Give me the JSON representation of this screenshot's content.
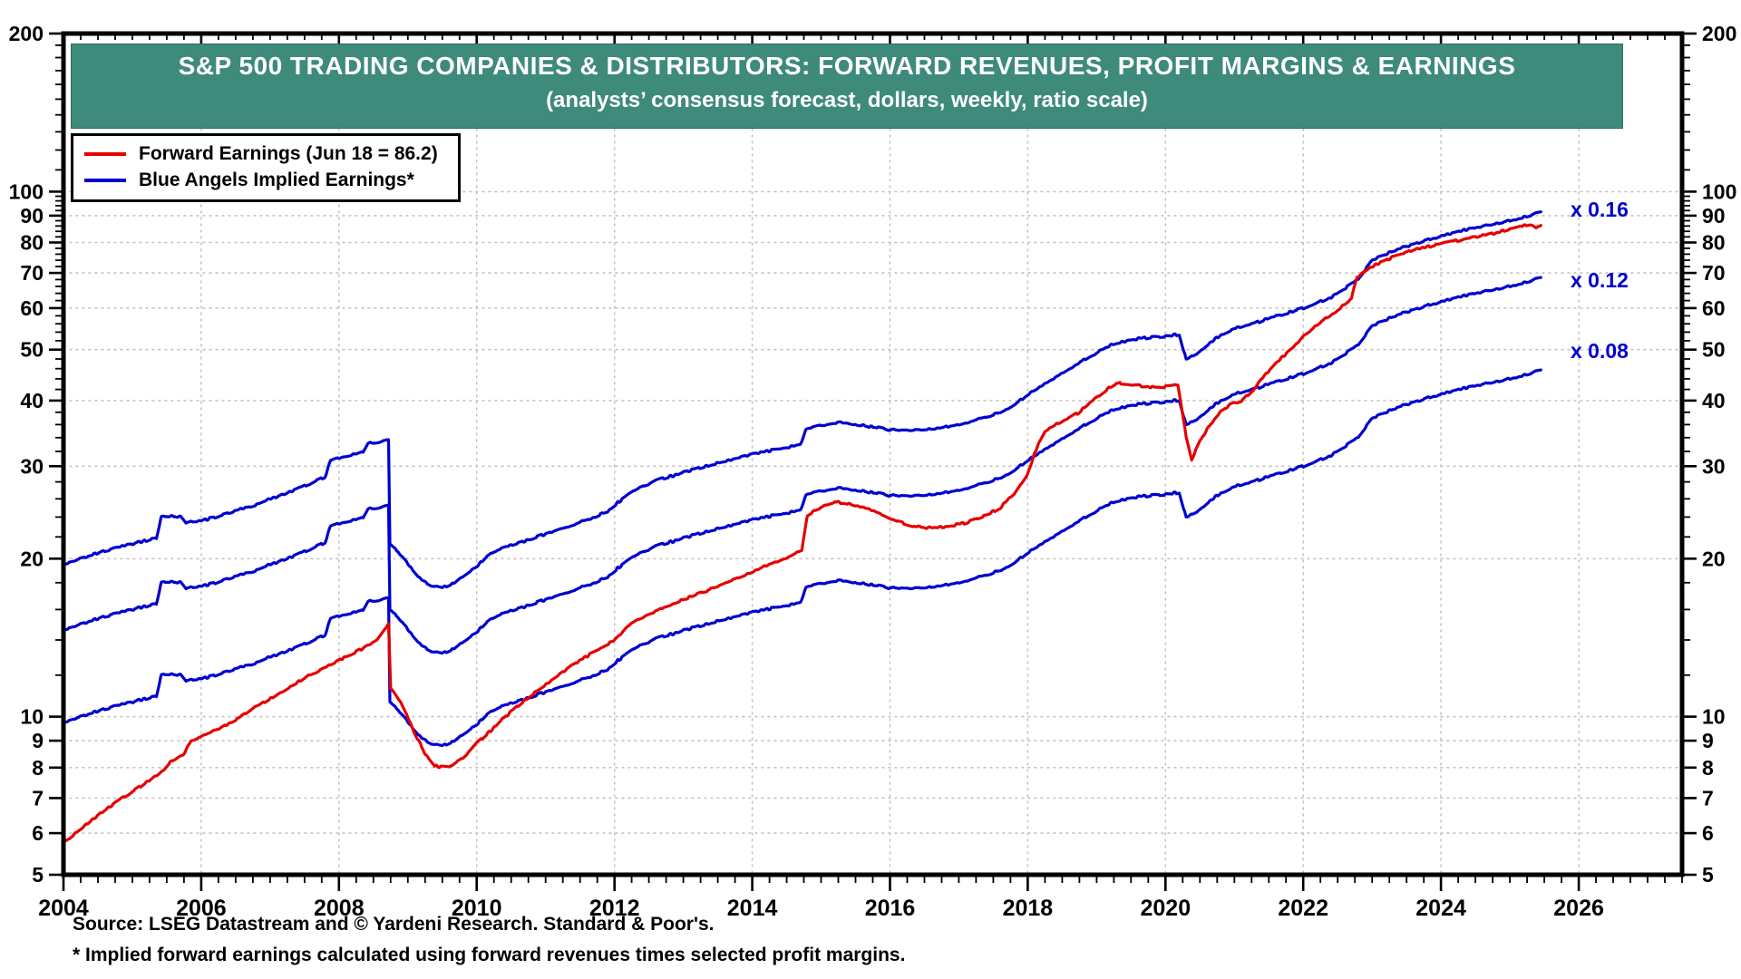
{
  "colors": {
    "forward_earnings": "#e60000",
    "blue_angels": "#0000d0",
    "title_bar_bg": "#3e8a7b",
    "grid": "#c3c3c3"
  },
  "legend": {
    "items": [
      {
        "label": "Forward Earnings (Jun 18 = 86.2)",
        "color": "#e60000"
      },
      {
        "label": "Blue Angels Implied Earnings*",
        "color": "#0000d0"
      }
    ]
  },
  "footer": {
    "source": "Source: LSEG Datastream and © Yardeni Research. Standard & Poor's.",
    "footnote": "* Implied forward earnings calculated using forward revenues times selected profit margins."
  },
  "chart_data": {
    "type": "line",
    "title": "S&P 500 TRADING COMPANIES & DISTRIBUTORS: FORWARD REVENUES, PROFIT MARGINS & EARNINGS",
    "subtitle": "(analysts’ consensus forecast, dollars, weekly, ratio scale)",
    "x_axis": {
      "start": 2004,
      "end": 2027.5,
      "tick_labels": [
        "2004",
        "2006",
        "2008",
        "2010",
        "2012",
        "2014",
        "2016",
        "2018",
        "2020",
        "2022",
        "2024",
        "2026"
      ],
      "tick_years": [
        2004,
        2006,
        2008,
        2010,
        2012,
        2014,
        2016,
        2018,
        2020,
        2022,
        2024,
        2026
      ],
      "minor_tick_interval_years": 0.25,
      "grid_years": [
        2006,
        2008,
        2010,
        2012,
        2014,
        2016,
        2018,
        2020,
        2022,
        2024,
        2026
      ]
    },
    "y_axis": {
      "scale": "log",
      "top": 200,
      "bottom": 5,
      "tick_values": [
        200,
        100,
        90,
        80,
        70,
        60,
        50,
        40,
        30,
        20,
        10,
        9,
        8,
        7,
        6,
        5
      ],
      "tick_labels": [
        "200",
        "100",
        "90",
        "80",
        "70",
        "60",
        "50",
        "40",
        "30",
        "20",
        "10",
        "9",
        "8",
        "7",
        "6",
        "5"
      ],
      "grid_values": [
        100,
        90,
        80,
        70,
        60,
        50,
        40,
        30,
        20,
        10,
        9,
        8,
        7,
        6
      ],
      "minor_tick_values": [
        6,
        7,
        8,
        9,
        12,
        14,
        16,
        18,
        22,
        24,
        26,
        28,
        32,
        34,
        36,
        38,
        42,
        44,
        46,
        48,
        52,
        54,
        56,
        58,
        62,
        64,
        66,
        68,
        72,
        74,
        76,
        78,
        82,
        84,
        86,
        88,
        92,
        94,
        96,
        98,
        110,
        120,
        130,
        140,
        150,
        160,
        170,
        180,
        190
      ]
    },
    "annotations": [
      {
        "text": "x 0.16",
        "y_value": 88
      },
      {
        "text": "x 0.12",
        "y_value": 66
      },
      {
        "text": "x 0.08",
        "y_value": 48
      }
    ],
    "series": [
      {
        "name": "Blue Angels Implied Earnings x 0.16",
        "color": "#0000d0",
        "note": "forward revenues times 0.16 profit margin; crash discontinuity late 2008",
        "ratio_to_base": 1.0,
        "points": [
          [
            2004.0,
            19.5
          ],
          [
            2004.3,
            20.1
          ],
          [
            2004.6,
            20.7
          ],
          [
            2004.9,
            21.2
          ],
          [
            2005.1,
            21.5
          ],
          [
            2005.35,
            21.9
          ],
          [
            2005.42,
            24.0
          ],
          [
            2005.7,
            24.1
          ],
          [
            2005.78,
            23.4
          ],
          [
            2006.0,
            23.6
          ],
          [
            2006.3,
            24.2
          ],
          [
            2006.6,
            24.9
          ],
          [
            2006.8,
            25.3
          ],
          [
            2007.0,
            26.0
          ],
          [
            2007.25,
            26.7
          ],
          [
            2007.5,
            27.5
          ],
          [
            2007.8,
            28.6
          ],
          [
            2007.88,
            30.8
          ],
          [
            2008.1,
            31.3
          ],
          [
            2008.35,
            32.0
          ],
          [
            2008.42,
            33.2
          ],
          [
            2008.6,
            33.3
          ],
          [
            2008.72,
            33.6
          ],
          [
            2008.74,
            21.3
          ],
          [
            2008.9,
            20.3
          ],
          [
            2009.05,
            19.2
          ],
          [
            2009.2,
            18.2
          ],
          [
            2009.35,
            17.7
          ],
          [
            2009.5,
            17.6
          ],
          [
            2009.65,
            17.9
          ],
          [
            2009.85,
            18.7
          ],
          [
            2010.0,
            19.3
          ],
          [
            2010.15,
            20.2
          ],
          [
            2010.3,
            20.8
          ],
          [
            2010.5,
            21.2
          ],
          [
            2010.7,
            21.6
          ],
          [
            2011.0,
            22.3
          ],
          [
            2011.3,
            23.0
          ],
          [
            2011.6,
            23.7
          ],
          [
            2011.9,
            24.6
          ],
          [
            2012.05,
            25.6
          ],
          [
            2012.3,
            27.0
          ],
          [
            2012.6,
            28.2
          ],
          [
            2012.9,
            28.9
          ],
          [
            2013.2,
            29.7
          ],
          [
            2013.5,
            30.4
          ],
          [
            2013.8,
            31.1
          ],
          [
            2014.1,
            31.8
          ],
          [
            2014.4,
            32.4
          ],
          [
            2014.7,
            33.0
          ],
          [
            2014.78,
            35.3
          ],
          [
            2015.0,
            35.9
          ],
          [
            2015.25,
            36.4
          ],
          [
            2015.5,
            36.0
          ],
          [
            2015.75,
            35.6
          ],
          [
            2016.0,
            35.2
          ],
          [
            2016.3,
            35.0
          ],
          [
            2016.6,
            35.3
          ],
          [
            2016.9,
            35.8
          ],
          [
            2017.1,
            36.3
          ],
          [
            2017.4,
            37.2
          ],
          [
            2017.7,
            38.5
          ],
          [
            2018.0,
            41.0
          ],
          [
            2018.3,
            43.5
          ],
          [
            2018.6,
            46.0
          ],
          [
            2018.9,
            48.5
          ],
          [
            2019.2,
            51.0
          ],
          [
            2019.5,
            52.3
          ],
          [
            2019.8,
            52.8
          ],
          [
            2020.0,
            53.0
          ],
          [
            2020.2,
            53.5
          ],
          [
            2020.3,
            47.8
          ],
          [
            2020.45,
            49.0
          ],
          [
            2020.6,
            51.0
          ],
          [
            2020.8,
            53.3
          ],
          [
            2021.0,
            54.8
          ],
          [
            2021.3,
            56.2
          ],
          [
            2021.6,
            57.8
          ],
          [
            2022.0,
            60.0
          ],
          [
            2022.4,
            62.8
          ],
          [
            2022.8,
            68.0
          ],
          [
            2023.0,
            74.0
          ],
          [
            2023.3,
            77.0
          ],
          [
            2023.6,
            79.5
          ],
          [
            2023.9,
            81.5
          ],
          [
            2024.2,
            83.5
          ],
          [
            2024.5,
            85.5
          ],
          [
            2024.8,
            87.0
          ],
          [
            2025.1,
            88.8
          ],
          [
            2025.3,
            90.0
          ],
          [
            2025.45,
            91.5
          ]
        ]
      },
      {
        "name": "Blue Angels Implied Earnings x 0.12",
        "color": "#0000d0",
        "ratio_to_base": 0.75
      },
      {
        "name": "Blue Angels Implied Earnings x 0.08",
        "color": "#0000d0",
        "ratio_to_base": 0.5
      },
      {
        "name": "Forward Earnings",
        "color": "#e60000",
        "latest_label": "Jun 18 = 86.2",
        "points": [
          [
            2004.0,
            5.75
          ],
          [
            2004.25,
            6.1
          ],
          [
            2004.5,
            6.5
          ],
          [
            2004.75,
            6.85
          ],
          [
            2005.0,
            7.2
          ],
          [
            2005.25,
            7.55
          ],
          [
            2005.45,
            7.9
          ],
          [
            2005.55,
            8.2
          ],
          [
            2005.75,
            8.5
          ],
          [
            2005.85,
            9.0
          ],
          [
            2006.05,
            9.2
          ],
          [
            2006.3,
            9.55
          ],
          [
            2006.55,
            9.95
          ],
          [
            2006.8,
            10.45
          ],
          [
            2007.05,
            10.9
          ],
          [
            2007.3,
            11.4
          ],
          [
            2007.55,
            11.95
          ],
          [
            2007.8,
            12.4
          ],
          [
            2008.05,
            12.9
          ],
          [
            2008.3,
            13.4
          ],
          [
            2008.55,
            14.0
          ],
          [
            2008.68,
            14.8
          ],
          [
            2008.72,
            15.1
          ],
          [
            2008.75,
            11.4
          ],
          [
            2008.9,
            10.6
          ],
          [
            2009.0,
            10.0
          ],
          [
            2009.1,
            9.3
          ],
          [
            2009.25,
            8.5
          ],
          [
            2009.4,
            8.05
          ],
          [
            2009.6,
            8.0
          ],
          [
            2009.8,
            8.35
          ],
          [
            2010.0,
            8.9
          ],
          [
            2010.2,
            9.4
          ],
          [
            2010.4,
            9.95
          ],
          [
            2010.6,
            10.5
          ],
          [
            2010.8,
            11.0
          ],
          [
            2011.0,
            11.5
          ],
          [
            2011.25,
            12.15
          ],
          [
            2011.5,
            12.8
          ],
          [
            2011.75,
            13.4
          ],
          [
            2012.0,
            14.0
          ],
          [
            2012.2,
            14.9
          ],
          [
            2012.45,
            15.6
          ],
          [
            2012.7,
            16.1
          ],
          [
            2013.0,
            16.7
          ],
          [
            2013.3,
            17.3
          ],
          [
            2013.6,
            17.9
          ],
          [
            2013.9,
            18.6
          ],
          [
            2014.2,
            19.4
          ],
          [
            2014.5,
            20.1
          ],
          [
            2014.72,
            20.7
          ],
          [
            2014.8,
            24.2
          ],
          [
            2015.0,
            25.1
          ],
          [
            2015.2,
            25.7
          ],
          [
            2015.4,
            25.4
          ],
          [
            2015.7,
            24.9
          ],
          [
            2016.0,
            23.9
          ],
          [
            2016.25,
            23.2
          ],
          [
            2016.5,
            22.9
          ],
          [
            2016.8,
            23.0
          ],
          [
            2017.1,
            23.4
          ],
          [
            2017.4,
            24.2
          ],
          [
            2017.6,
            25.0
          ],
          [
            2017.8,
            26.5
          ],
          [
            2018.0,
            29.0
          ],
          [
            2018.15,
            33.0
          ],
          [
            2018.25,
            35.0
          ],
          [
            2018.5,
            36.5
          ],
          [
            2018.75,
            38.0
          ],
          [
            2019.0,
            40.5
          ],
          [
            2019.2,
            42.5
          ],
          [
            2019.35,
            43.2
          ],
          [
            2019.55,
            42.8
          ],
          [
            2019.8,
            42.4
          ],
          [
            2020.0,
            42.5
          ],
          [
            2020.18,
            42.8
          ],
          [
            2020.3,
            34.0
          ],
          [
            2020.38,
            30.8
          ],
          [
            2020.5,
            33.5
          ],
          [
            2020.65,
            36.0
          ],
          [
            2020.8,
            38.0
          ],
          [
            2020.95,
            39.5
          ],
          [
            2021.1,
            39.9
          ],
          [
            2021.25,
            41.5
          ],
          [
            2021.4,
            44.0
          ],
          [
            2021.6,
            47.0
          ],
          [
            2021.8,
            49.8
          ],
          [
            2022.0,
            53.0
          ],
          [
            2022.25,
            56.5
          ],
          [
            2022.5,
            59.5
          ],
          [
            2022.7,
            62.5
          ],
          [
            2022.78,
            68.5
          ],
          [
            2023.0,
            72.0
          ],
          [
            2023.3,
            75.0
          ],
          [
            2023.6,
            77.5
          ],
          [
            2023.9,
            79.0
          ],
          [
            2024.2,
            80.5
          ],
          [
            2024.5,
            82.0
          ],
          [
            2024.8,
            83.5
          ],
          [
            2025.05,
            85.0
          ],
          [
            2025.2,
            86.3
          ],
          [
            2025.3,
            86.6
          ],
          [
            2025.38,
            85.2
          ],
          [
            2025.45,
            86.2
          ]
        ]
      }
    ],
    "legend_position": "top-left",
    "grid": "dotted"
  }
}
